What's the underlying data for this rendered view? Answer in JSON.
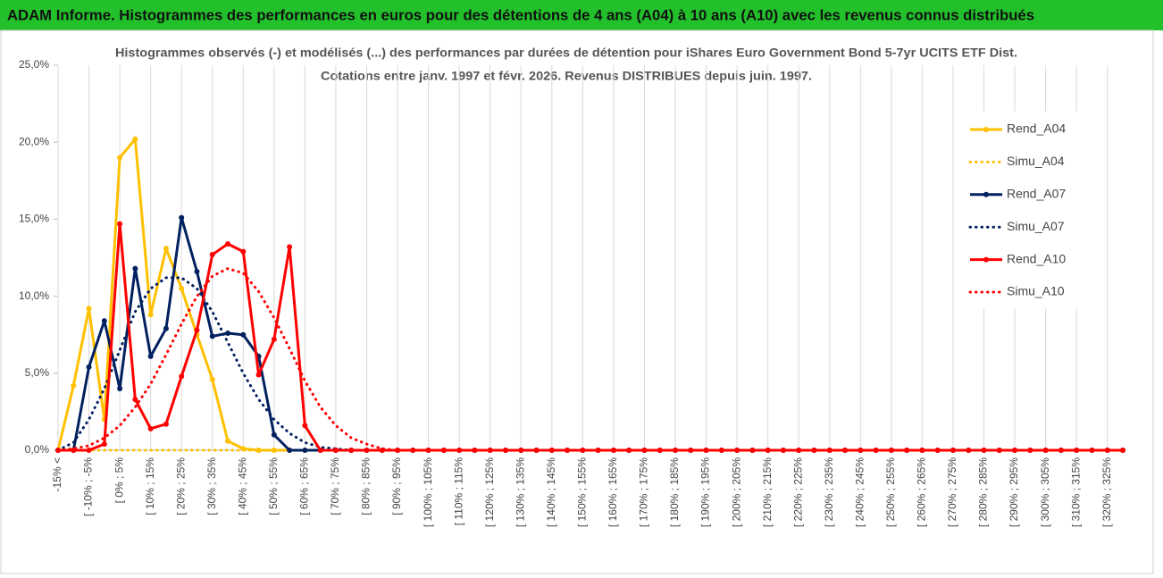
{
  "header": "ADAM Informe. Histogrammes des performances en euros pour des détentions de 4 ans (A04) à 10 ans (A10) avec les revenus connus distribués",
  "chart_data": {
    "type": "line",
    "title": "Histogrammes observés (-) et modélisés (...) des performances par durées de détention pour iShares Euro Government Bond 5-7yr UCITS ETF Dist.",
    "subtitle": "Cotations entre janv. 1997 et févr. 2026. Revenus DISTRIBUES depuis juin. 1997.",
    "categories": [
      "-15% <",
      null,
      "[ -10% ; -5%",
      null,
      "[ 0% ; 5%",
      null,
      "[ 10% ; 15%",
      null,
      "[ 20% ; 25%",
      null,
      "[ 30% ; 35%",
      null,
      "[ 40% ; 45%",
      null,
      "[ 50% ; 55%",
      null,
      "[ 60% ; 65%",
      null,
      "[ 70% ; 75%",
      null,
      "[ 80% ; 85%",
      null,
      "[ 90% ; 95%",
      null,
      "[ 100% ; 105%",
      null,
      "[ 110% ; 115%",
      null,
      "[ 120% ; 125%",
      null,
      "[ 130% ; 135%",
      null,
      "[ 140% ; 145%",
      null,
      "[ 150% ; 155%",
      null,
      "[ 160% ; 165%",
      null,
      "[ 170% ; 175%",
      null,
      "[ 180% ; 185%",
      null,
      "[ 190% ; 195%",
      null,
      "[ 200% ; 205%",
      null,
      "[ 210% ; 215%",
      null,
      "[ 220% ; 225%",
      null,
      "[ 230% ; 235%",
      null,
      "[ 240% ; 245%",
      null,
      "[ 250% ; 255%",
      null,
      "[ 260% ; 265%",
      null,
      "[ 270% ; 275%",
      null,
      "[ 280% ; 285%",
      null,
      "[ 290% ; 295%",
      null,
      "[ 300% ; 305%",
      null,
      "[ 310% ; 315%",
      null,
      "[ 320% ; 325%",
      null
    ],
    "series": [
      {
        "name": "Rend_A04",
        "color": "#ffc000",
        "dashed": false,
        "values": [
          0,
          4.2,
          9.2,
          2.0,
          19.0,
          20.2,
          8.8,
          13.1,
          10.5,
          7.5,
          4.6,
          0.6,
          0.1,
          0,
          0,
          0,
          0,
          0,
          0,
          0,
          0,
          0,
          0,
          0,
          0,
          0,
          0,
          0,
          0,
          0,
          0,
          0,
          0,
          0,
          0,
          0,
          0,
          0,
          0,
          0,
          0,
          0,
          0,
          0,
          0,
          0,
          0,
          0,
          0,
          0,
          0,
          0,
          0,
          0,
          0,
          0,
          0,
          0,
          0,
          0,
          0,
          0,
          0,
          0,
          0,
          0,
          0,
          0,
          0,
          0
        ]
      },
      {
        "name": "Simu_A04",
        "color": "#ffc000",
        "dashed": true,
        "values": [
          0,
          0,
          0,
          0,
          0,
          0,
          0,
          0,
          0,
          0,
          0,
          0,
          0,
          0,
          0,
          0,
          0,
          0,
          0,
          0,
          0,
          0,
          0,
          0,
          0,
          0,
          0,
          0,
          0,
          0,
          0,
          0,
          0,
          0,
          0,
          0,
          0,
          0,
          0,
          0,
          0,
          0,
          0,
          0,
          0,
          0,
          0,
          0,
          0,
          0,
          0,
          0,
          0,
          0,
          0,
          0,
          0,
          0,
          0,
          0,
          0,
          0,
          0,
          0,
          0,
          0,
          0,
          0,
          0,
          0
        ]
      },
      {
        "name": "Rend_A07",
        "color": "#002060",
        "dashed": false,
        "values": [
          0,
          0,
          5.4,
          8.4,
          4.0,
          11.8,
          6.1,
          7.9,
          15.1,
          11.6,
          7.4,
          7.6,
          7.5,
          6.1,
          1.0,
          0,
          0,
          0,
          0,
          0,
          0,
          0,
          0,
          0,
          0,
          0,
          0,
          0,
          0,
          0,
          0,
          0,
          0,
          0,
          0,
          0,
          0,
          0,
          0,
          0,
          0,
          0,
          0,
          0,
          0,
          0,
          0,
          0,
          0,
          0,
          0,
          0,
          0,
          0,
          0,
          0,
          0,
          0,
          0,
          0,
          0,
          0,
          0,
          0,
          0,
          0,
          0,
          0,
          0,
          0
        ]
      },
      {
        "name": "Simu_A07",
        "color": "#002060",
        "dashed": true,
        "values": [
          0,
          0.5,
          2.0,
          4.0,
          6.5,
          9.0,
          10.5,
          11.2,
          11.2,
          10.5,
          9.0,
          7.0,
          5.0,
          3.3,
          2.0,
          1.1,
          0.5,
          0.2,
          0.1,
          0,
          0,
          0,
          0,
          0,
          0,
          0,
          0,
          0,
          0,
          0,
          0,
          0,
          0,
          0,
          0,
          0,
          0,
          0,
          0,
          0,
          0,
          0,
          0,
          0,
          0,
          0,
          0,
          0,
          0,
          0,
          0,
          0,
          0,
          0,
          0,
          0,
          0,
          0,
          0,
          0,
          0,
          0,
          0,
          0,
          0,
          0,
          0,
          0,
          0,
          0
        ]
      },
      {
        "name": "Rend_A10",
        "color": "#ff0000",
        "dashed": false,
        "values": [
          0,
          0,
          0,
          0.4,
          14.7,
          3.3,
          1.4,
          1.7,
          4.8,
          7.8,
          12.7,
          13.4,
          12.9,
          4.9,
          7.2,
          13.2,
          1.6,
          0,
          0,
          0,
          0,
          0,
          0,
          0,
          0,
          0,
          0,
          0,
          0,
          0,
          0,
          0,
          0,
          0,
          0,
          0,
          0,
          0,
          0,
          0,
          0,
          0,
          0,
          0,
          0,
          0,
          0,
          0,
          0,
          0,
          0,
          0,
          0,
          0,
          0,
          0,
          0,
          0,
          0,
          0,
          0,
          0,
          0,
          0,
          0,
          0,
          0,
          0,
          0,
          0
        ]
      },
      {
        "name": "Simu_A10",
        "color": "#ff0000",
        "dashed": true,
        "values": [
          0,
          0.1,
          0.3,
          0.8,
          1.6,
          2.8,
          4.3,
          6.2,
          8.2,
          10.0,
          11.3,
          11.8,
          11.5,
          10.3,
          8.6,
          6.6,
          4.5,
          2.8,
          1.6,
          0.8,
          0.4,
          0.1,
          0,
          0,
          0,
          0,
          0,
          0,
          0,
          0,
          0,
          0,
          0,
          0,
          0,
          0,
          0,
          0,
          0,
          0,
          0,
          0,
          0,
          0,
          0,
          0,
          0,
          0,
          0,
          0,
          0,
          0,
          0,
          0,
          0,
          0,
          0,
          0,
          0,
          0,
          0,
          0,
          0,
          0,
          0,
          0,
          0,
          0,
          0,
          0
        ]
      }
    ],
    "ylim": [
      0,
      25
    ],
    "yticks": [
      {
        "value": 0,
        "label": "0,0%"
      },
      {
        "value": 5,
        "label": "5,0%"
      },
      {
        "value": 10,
        "label": "10,0%"
      },
      {
        "value": 15,
        "label": "15,0%"
      },
      {
        "value": 20,
        "label": "20,0%"
      },
      {
        "value": 25,
        "label": "25,0%"
      }
    ],
    "xgrid": true,
    "legend": "upper right"
  }
}
